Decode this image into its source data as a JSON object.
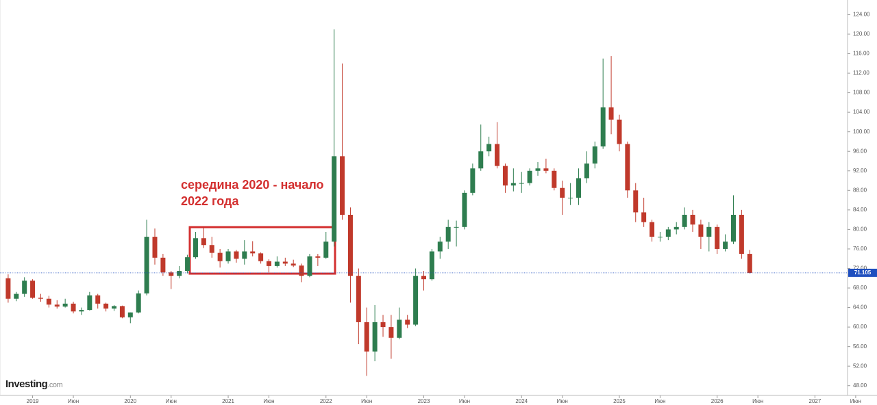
{
  "chart_data": {
    "type": "candlestick",
    "annotation": "середина 2020 - начало 2022 года",
    "brand": "Investing",
    "brand_suffix": ".com",
    "up_color": "#2e7d4f",
    "down_color": "#c0392b",
    "last_color": "#1f4fbf",
    "x": [
      "2018-10",
      "2018-11",
      "2018-12",
      "2019-01",
      "2019-02",
      "2019-03",
      "2019-04",
      "2019-05",
      "2019-06",
      "2019-07",
      "2019-08",
      "2019-09",
      "2019-10",
      "2019-11",
      "2019-12",
      "2020-01",
      "2020-02",
      "2020-03",
      "2020-04",
      "2020-05",
      "2020-06",
      "2020-07",
      "2020-08",
      "2020-09",
      "2020-10",
      "2020-11",
      "2020-12",
      "2021-01",
      "2021-02",
      "2021-03",
      "2021-04",
      "2021-05",
      "2021-06",
      "2021-07",
      "2021-08",
      "2021-09",
      "2021-10",
      "2021-11",
      "2021-12",
      "2022-01",
      "2022-02",
      "2022-03",
      "2022-04",
      "2022-05",
      "2022-06",
      "2022-07",
      "2022-08",
      "2022-09",
      "2022-10",
      "2022-11",
      "2022-12",
      "2023-01",
      "2023-02",
      "2023-03",
      "2023-04",
      "2023-05",
      "2023-06",
      "2023-07",
      "2023-08",
      "2023-09",
      "2023-10",
      "2023-11",
      "2023-12",
      "2024-01",
      "2024-02",
      "2024-03",
      "2024-04",
      "2024-05",
      "2024-06",
      "2024-07",
      "2024-08",
      "2024-09",
      "2024-10",
      "2024-11",
      "2024-12",
      "2025-01",
      "2025-02",
      "2025-03",
      "2025-04",
      "2025-05",
      "2025-06",
      "2025-07",
      "2025-08",
      "2025-09",
      "2025-10",
      "2025-11",
      "2025-12",
      "2026-01",
      "2026-02",
      "2026-03",
      "2026-04",
      "2026-05"
    ],
    "open": [
      70.0,
      65.8,
      66.8,
      69.5,
      66.0,
      65.8,
      64.6,
      64.2,
      64.8,
      63.2,
      63.5,
      66.5,
      64.8,
      63.8,
      64.3,
      62.0,
      63.0,
      66.9,
      78.5,
      74.2,
      71.2,
      70.5,
      71.5,
      74.3,
      78.2,
      76.8,
      75.2,
      73.5,
      75.5,
      74.0,
      75.5,
      75.1,
      73.5,
      72.5,
      73.4,
      73.0,
      72.6,
      70.5,
      74.5,
      74.2,
      77.5,
      95.0,
      83.0,
      70.5,
      61.0,
      55.0,
      61.0,
      60.0,
      57.8,
      61.5,
      60.5,
      70.5,
      69.8,
      75.5,
      77.5,
      80.5,
      80.5,
      87.5,
      92.5,
      96.0,
      97.5,
      93.0,
      89.0,
      89.5,
      89.5,
      92.0,
      92.5,
      92.0,
      88.5,
      86.5,
      86.5,
      90.5,
      93.5,
      97.0,
      105.0,
      102.5,
      97.5,
      88.0,
      83.5,
      81.5,
      78.5,
      78.5,
      80.0,
      80.5,
      83.0,
      81.0,
      78.5,
      80.5,
      76.0,
      77.5,
      83.0,
      75.0
    ],
    "high": [
      70.8,
      67.2,
      70.2,
      69.8,
      66.8,
      66.4,
      65.5,
      65.8,
      65.2,
      64.0,
      67.2,
      66.8,
      65.0,
      64.5,
      64.4,
      63.0,
      67.5,
      82.0,
      80.2,
      75.0,
      71.5,
      72.5,
      74.8,
      79.5,
      80.5,
      78.5,
      76.0,
      76.0,
      75.8,
      77.8,
      77.6,
      75.3,
      73.9,
      74.5,
      74.2,
      73.8,
      73.0,
      75.0,
      75.0,
      79.5,
      121.0,
      114.0,
      84.5,
      72.0,
      64.0,
      64.5,
      62.5,
      62.5,
      64.0,
      62.5,
      72.0,
      71.5,
      76.0,
      78.5,
      82.0,
      81.8,
      88.0,
      93.5,
      101.5,
      99.0,
      102.0,
      93.5,
      92.5,
      91.8,
      92.5,
      93.8,
      94.5,
      92.5,
      90.0,
      89.5,
      92.5,
      96.0,
      98.0,
      115.0,
      115.5,
      103.5,
      98.0,
      89.5,
      86.5,
      82.0,
      79.5,
      80.5,
      81.5,
      84.5,
      84.0,
      82.0,
      81.5,
      81.0,
      79.0,
      87.0,
      84.0,
      75.8
    ],
    "low": [
      65.0,
      65.3,
      66.2,
      65.8,
      65.2,
      64.0,
      63.8,
      64.0,
      62.8,
      62.5,
      63.4,
      63.8,
      63.2,
      63.3,
      61.8,
      60.8,
      62.8,
      66.5,
      72.8,
      70.5,
      67.8,
      70.0,
      71.0,
      74.0,
      76.2,
      74.2,
      72.2,
      73.0,
      73.2,
      72.8,
      74.5,
      73.0,
      71.2,
      72.2,
      72.5,
      72.3,
      69.2,
      70.2,
      72.5,
      74.0,
      76.5,
      82.0,
      65.0,
      56.5,
      50.0,
      53.0,
      58.0,
      53.5,
      57.5,
      59.8,
      60.2,
      67.5,
      69.5,
      74.0,
      76.0,
      76.5,
      80.0,
      87.0,
      92.0,
      95.0,
      92.5,
      87.5,
      87.8,
      87.5,
      89.0,
      91.0,
      91.5,
      88.0,
      83.0,
      85.0,
      85.0,
      89.5,
      92.5,
      96.5,
      99.5,
      96.0,
      86.5,
      81.5,
      80.5,
      77.5,
      77.5,
      77.8,
      79.0,
      80.0,
      79.5,
      76.0,
      75.5,
      75.0,
      75.5,
      77.0,
      74.0,
      71.0
    ],
    "close": [
      65.8,
      66.8,
      69.5,
      66.0,
      65.8,
      64.6,
      64.2,
      64.8,
      63.2,
      63.5,
      66.5,
      64.8,
      63.8,
      64.3,
      62.0,
      63.0,
      66.9,
      78.5,
      74.2,
      71.2,
      70.5,
      71.5,
      74.3,
      78.2,
      76.8,
      75.2,
      73.5,
      75.5,
      74.0,
      75.5,
      75.1,
      73.5,
      72.5,
      73.4,
      73.0,
      72.6,
      70.5,
      74.5,
      74.2,
      77.5,
      95.0,
      83.0,
      70.5,
      61.0,
      55.0,
      61.0,
      60.0,
      57.8,
      61.5,
      60.5,
      70.5,
      69.8,
      75.5,
      77.5,
      80.5,
      80.5,
      87.5,
      92.5,
      96.0,
      97.5,
      93.0,
      89.0,
      89.5,
      89.5,
      92.0,
      92.5,
      92.0,
      88.5,
      86.5,
      86.5,
      90.5,
      93.5,
      97.0,
      105.0,
      102.5,
      97.5,
      88.0,
      83.5,
      81.5,
      78.5,
      78.5,
      80.0,
      80.5,
      83.0,
      81.0,
      78.5,
      80.5,
      76.0,
      77.5,
      83.0,
      75.0,
      71.105
    ],
    "xlim": [
      "2018-09",
      "2027-05"
    ],
    "xticks": [
      {
        "value": "2019-01",
        "label": "2019"
      },
      {
        "value": "2019-06",
        "label": "Июн"
      },
      {
        "value": "2020-01",
        "label": "2020"
      },
      {
        "value": "2020-06",
        "label": "Июн"
      },
      {
        "value": "2021-01",
        "label": "2021"
      },
      {
        "value": "2021-06",
        "label": "Июн"
      },
      {
        "value": "2022-01",
        "label": "2022"
      },
      {
        "value": "2022-06",
        "label": "Июн"
      },
      {
        "value": "2023-01",
        "label": "2023"
      },
      {
        "value": "2023-06",
        "label": "Июн"
      },
      {
        "value": "2024-01",
        "label": "2024"
      },
      {
        "value": "2024-06",
        "label": "Июн"
      },
      {
        "value": "2025-01",
        "label": "2025"
      },
      {
        "value": "2025-06",
        "label": "Июн"
      },
      {
        "value": "2026-01",
        "label": "2026"
      },
      {
        "value": "2026-06",
        "label": "Июн"
      },
      {
        "value": "2027-01",
        "label": "2027"
      },
      {
        "value": "2027-06",
        "label": "Июн"
      }
    ],
    "ylim": [
      46,
      127
    ],
    "yticks": [
      {
        "value": 48,
        "label": "48.00"
      },
      {
        "value": 52,
        "label": "52.00"
      },
      {
        "value": 56,
        "label": "56.00"
      },
      {
        "value": 60,
        "label": "60.00"
      },
      {
        "value": 64,
        "label": "64.00"
      },
      {
        "value": 68,
        "label": "68.00"
      },
      {
        "value": 72,
        "label": "72.00"
      },
      {
        "value": 76,
        "label": "76.00"
      },
      {
        "value": 80,
        "label": "80.00"
      },
      {
        "value": 84,
        "label": "84.00"
      },
      {
        "value": 88,
        "label": "88.00"
      },
      {
        "value": 92,
        "label": "92.00"
      },
      {
        "value": 96,
        "label": "96.00"
      },
      {
        "value": 100,
        "label": "100.00"
      },
      {
        "value": 104,
        "label": "104.00"
      },
      {
        "value": 108,
        "label": "108.00"
      },
      {
        "value": 112,
        "label": "112.00"
      },
      {
        "value": 116,
        "label": "116.00"
      },
      {
        "value": 120,
        "label": "120.00"
      },
      {
        "value": 124,
        "label": "124.00"
      }
    ]
  }
}
